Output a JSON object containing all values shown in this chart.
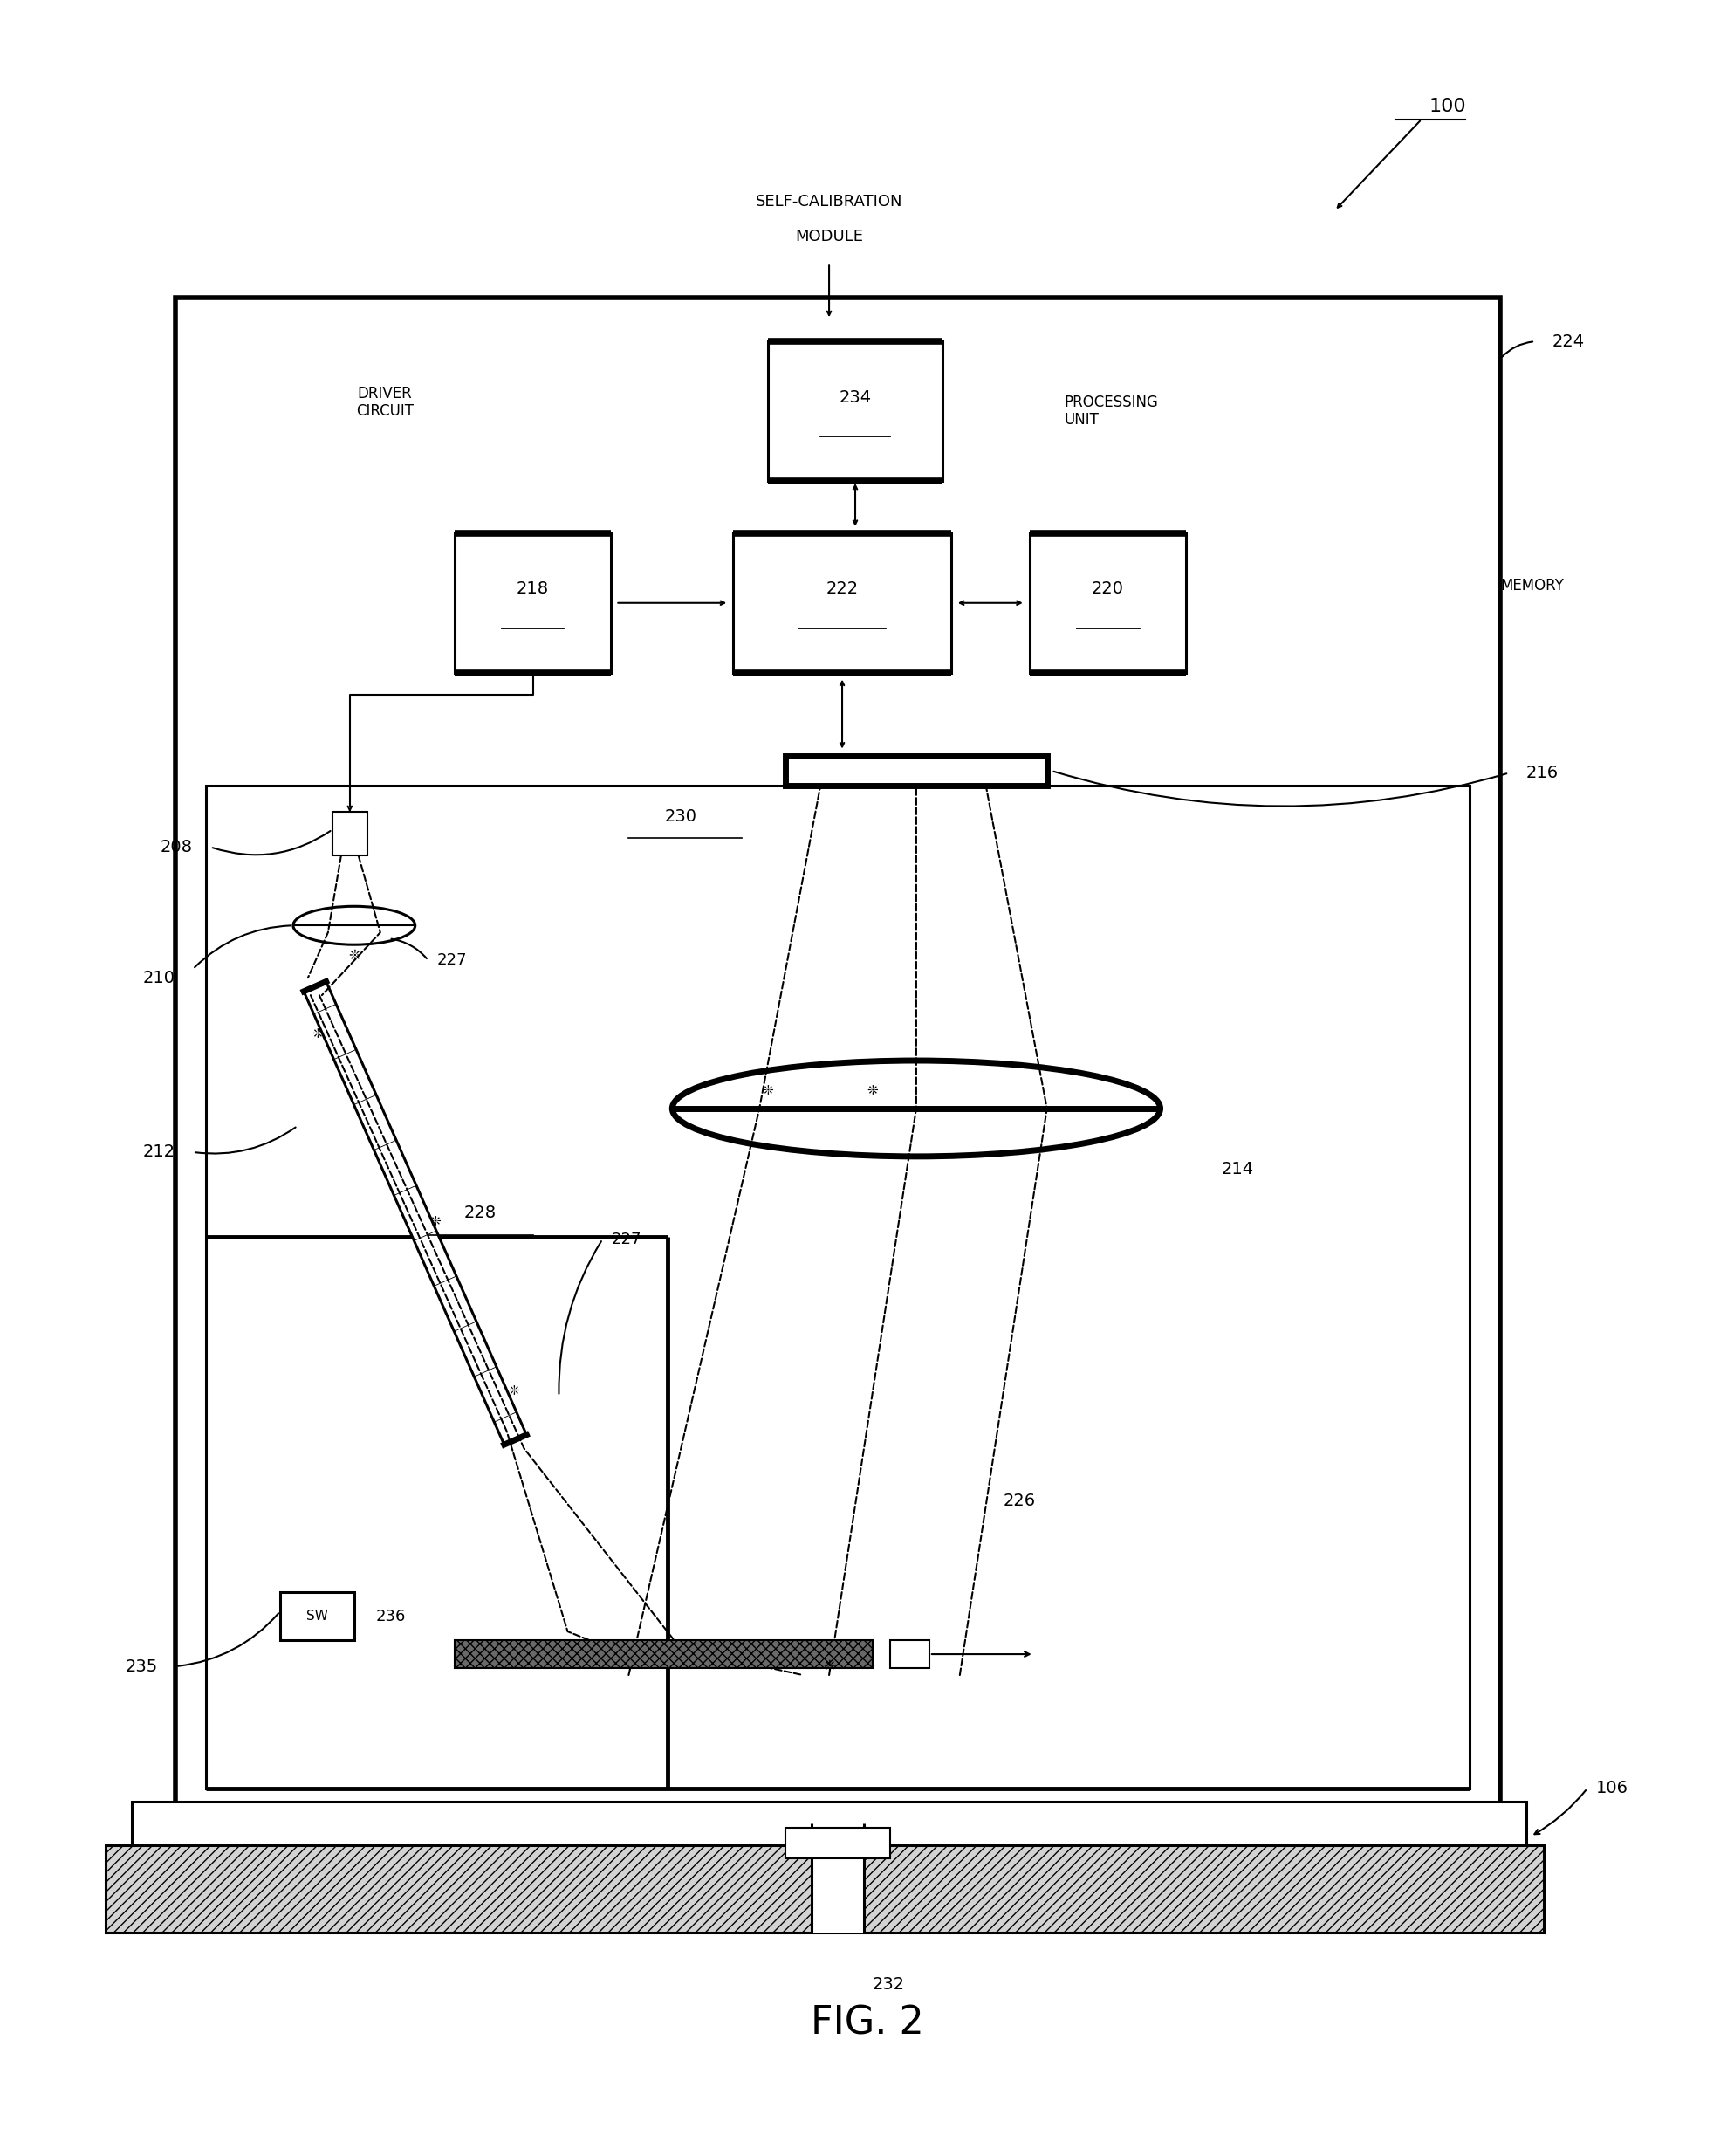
{
  "fig_label": "FIG. 2",
  "ref_100": "100",
  "ref_106": "106",
  "ref_208": "208",
  "ref_210": "210",
  "ref_212": "212",
  "ref_214": "214",
  "ref_216": "216",
  "ref_218": "218",
  "ref_220": "220",
  "ref_222": "222",
  "ref_224": "224",
  "ref_226": "226",
  "ref_227": "227",
  "ref_228": "228",
  "ref_230": "230",
  "ref_232": "232",
  "ref_234": "234",
  "ref_235": "235",
  "ref_236": "236",
  "label_driver": "DRIVER\nCIRCUIT",
  "label_processing": "PROCESSING\nUNIT",
  "label_memory": "MEMORY",
  "label_self_cal_1": "SELF-CALIBRATION",
  "label_self_cal_2": "MODULE",
  "bg_color": "#ffffff",
  "lc": "#000000"
}
